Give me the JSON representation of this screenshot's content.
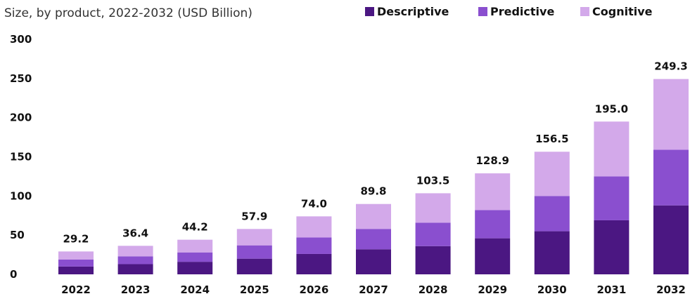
{
  "chart_data": {
    "type": "bar",
    "stacked": true,
    "subtitle": "Size, by product, 2022-2032 (USD Billion)",
    "categories": [
      "2022",
      "2023",
      "2024",
      "2025",
      "2026",
      "2027",
      "2028",
      "2029",
      "2030",
      "2031",
      "2032"
    ],
    "totals": [
      "29.2",
      "36.4",
      "44.2",
      "57.9",
      "74.0",
      "89.8",
      "103.5",
      "128.9",
      "156.5",
      "195.0",
      "249.3"
    ],
    "series": [
      {
        "name": "Descriptive",
        "color": "#4b1782",
        "values": [
          10,
          13,
          16,
          20,
          26,
          32,
          36,
          46,
          55,
          69,
          88
        ]
      },
      {
        "name": "Predictive",
        "color": "#8a4fcf",
        "values": [
          9,
          10,
          12,
          17,
          21,
          26,
          30,
          36,
          45,
          56,
          71
        ]
      },
      {
        "name": "Cognitive",
        "color": "#d3a9ea",
        "values": [
          10.2,
          13.4,
          16.2,
          20.9,
          27.0,
          31.8,
          37.5,
          46.9,
          56.5,
          70.0,
          90.3
        ]
      }
    ],
    "yticks": [
      "0",
      "50",
      "100",
      "150",
      "200",
      "250",
      "300"
    ],
    "ylim": [
      0,
      300
    ],
    "grid": false,
    "legend_position": "top-right"
  }
}
